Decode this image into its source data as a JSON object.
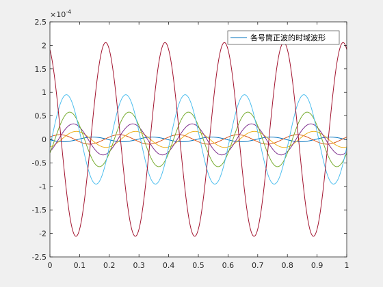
{
  "chart_data": {
    "type": "line",
    "title": "",
    "xlabel": "",
    "ylabel": "",
    "y_exponent_label": "×10",
    "y_exponent_power": "-4",
    "xlim": [
      0,
      1
    ],
    "ylim": [
      -2.5,
      2.5
    ],
    "x_ticks": [
      "0",
      "0.1",
      "0.2",
      "0.3",
      "0.4",
      "0.5",
      "0.6",
      "0.7",
      "0.8",
      "0.9",
      "1"
    ],
    "y_ticks": [
      "2.5",
      "2",
      "1.5",
      "1",
      "0.5",
      "0",
      "-0.5",
      "-1",
      "-1.5",
      "-2",
      "-2.5"
    ],
    "grid": false,
    "legend": {
      "location": "top-right",
      "entries": [
        "各号筒正波的时域波形"
      ]
    },
    "series": [
      {
        "color": "#0072bd",
        "amplitude": 0.05,
        "frequency": 5,
        "phase_deg": 100,
        "x_range": [
          0,
          1
        ]
      },
      {
        "color": "#d95319",
        "amplitude": 0.1,
        "frequency": 5,
        "phase_deg": -60,
        "x_range": [
          0,
          1
        ]
      },
      {
        "color": "#edb120",
        "amplitude": 0.17,
        "frequency": 5,
        "phase_deg": 200,
        "x_range": [
          0,
          1
        ]
      },
      {
        "color": "#7e2f8e",
        "amplitude": 0.33,
        "frequency": 5,
        "phase_deg": 218,
        "x_range": [
          0,
          1
        ]
      },
      {
        "color": "#77ac30",
        "amplitude": 0.58,
        "frequency": 5,
        "phase_deg": 240,
        "x_range": [
          0,
          1
        ]
      },
      {
        "color": "#4dbeee",
        "amplitude": 0.95,
        "frequency": 5,
        "phase_deg": 260,
        "x_range": [
          0,
          1
        ]
      },
      {
        "color": "#a2142f",
        "amplitude": 2.06,
        "frequency": 5,
        "phase_deg": 22,
        "x_range": [
          0,
          1
        ]
      }
    ]
  }
}
